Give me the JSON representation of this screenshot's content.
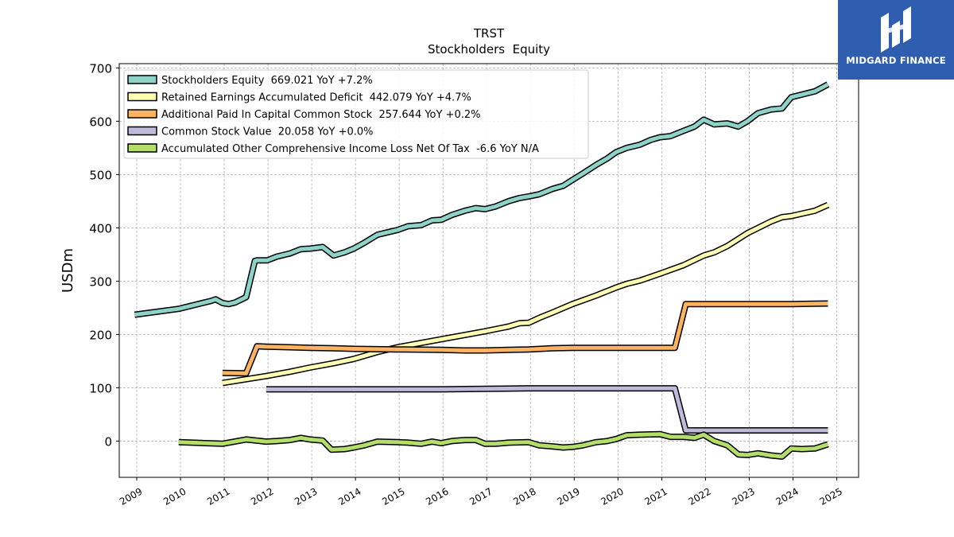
{
  "brand": {
    "name": "MIDGARD FINANCE",
    "bg_color": "#2f5db0"
  },
  "chart_data": {
    "type": "line",
    "title": "TRST",
    "subtitle": "Stockholders  Equity",
    "ylabel": "USDm",
    "xlabel": "",
    "xlim": [
      2008.6,
      2025.5
    ],
    "ylim": [
      -68,
      708
    ],
    "yticks": [
      0,
      100,
      200,
      300,
      400,
      500,
      600,
      700
    ],
    "xticks": [
      "2009",
      "2010",
      "2011",
      "2012",
      "2013",
      "2014",
      "2015",
      "2016",
      "2017",
      "2018",
      "2019",
      "2020",
      "2021",
      "2022",
      "2023",
      "2024",
      "2025"
    ],
    "grid": true,
    "legend_position": "top-left",
    "series": [
      {
        "name": "Stockholders Equity  669.021 YoY +7.2%",
        "color": "#8dd3c7",
        "points": [
          [
            2008.95,
            237
          ],
          [
            2009.96,
            248
          ],
          [
            2010.7,
            263
          ],
          [
            2010.8,
            266
          ],
          [
            2010.96,
            259
          ],
          [
            2011.1,
            257
          ],
          [
            2011.25,
            260
          ],
          [
            2011.5,
            270
          ],
          [
            2011.7,
            338
          ],
          [
            2011.75,
            339
          ],
          [
            2011.98,
            339
          ],
          [
            2012.2,
            346
          ],
          [
            2012.5,
            352
          ],
          [
            2012.75,
            360
          ],
          [
            2012.96,
            361
          ],
          [
            2013.25,
            364
          ],
          [
            2013.5,
            348
          ],
          [
            2013.75,
            354
          ],
          [
            2013.96,
            361
          ],
          [
            2014.2,
            372
          ],
          [
            2014.5,
            387
          ],
          [
            2014.75,
            392
          ],
          [
            2014.96,
            396
          ],
          [
            2015.2,
            403
          ],
          [
            2015.5,
            405
          ],
          [
            2015.75,
            414
          ],
          [
            2015.96,
            415
          ],
          [
            2016.2,
            424
          ],
          [
            2016.5,
            432
          ],
          [
            2016.75,
            437
          ],
          [
            2016.96,
            435
          ],
          [
            2017.2,
            440
          ],
          [
            2017.5,
            450
          ],
          [
            2017.75,
            456
          ],
          [
            2017.96,
            459
          ],
          [
            2018.2,
            463
          ],
          [
            2018.5,
            473
          ],
          [
            2018.75,
            479
          ],
          [
            2018.96,
            490
          ],
          [
            2019.2,
            502
          ],
          [
            2019.5,
            518
          ],
          [
            2019.75,
            530
          ],
          [
            2019.96,
            542
          ],
          [
            2020.2,
            550
          ],
          [
            2020.5,
            556
          ],
          [
            2020.75,
            565
          ],
          [
            2020.96,
            570
          ],
          [
            2021.2,
            572
          ],
          [
            2021.5,
            582
          ],
          [
            2021.75,
            590
          ],
          [
            2021.96,
            603
          ],
          [
            2022.2,
            594
          ],
          [
            2022.5,
            596
          ],
          [
            2022.75,
            590
          ],
          [
            2022.96,
            600
          ],
          [
            2023.2,
            615
          ],
          [
            2023.5,
            622
          ],
          [
            2023.75,
            624
          ],
          [
            2023.96,
            645
          ],
          [
            2024.2,
            650
          ],
          [
            2024.5,
            656
          ],
          [
            2024.8,
            669
          ]
        ]
      },
      {
        "name": "Retained Earnings Accumulated Deficit  442.079 YoY +4.7%",
        "color": "#ffffb3",
        "points": [
          [
            2010.96,
            109
          ],
          [
            2011.5,
            116
          ],
          [
            2011.96,
            122
          ],
          [
            2012.5,
            130
          ],
          [
            2012.96,
            138
          ],
          [
            2013.5,
            146
          ],
          [
            2013.96,
            154
          ],
          [
            2014.5,
            167
          ],
          [
            2014.96,
            176
          ],
          [
            2015.5,
            184
          ],
          [
            2015.96,
            191
          ],
          [
            2016.5,
            199
          ],
          [
            2016.96,
            206
          ],
          [
            2017.5,
            215
          ],
          [
            2017.75,
            221
          ],
          [
            2017.96,
            222
          ],
          [
            2018.2,
            231
          ],
          [
            2018.5,
            241
          ],
          [
            2018.96,
            257
          ],
          [
            2019.5,
            273
          ],
          [
            2019.96,
            288
          ],
          [
            2020.2,
            295
          ],
          [
            2020.5,
            301
          ],
          [
            2020.96,
            314
          ],
          [
            2021.5,
            330
          ],
          [
            2021.96,
            348
          ],
          [
            2022.2,
            354
          ],
          [
            2022.5,
            366
          ],
          [
            2022.96,
            390
          ],
          [
            2023.5,
            412
          ],
          [
            2023.75,
            420
          ],
          [
            2023.96,
            422
          ],
          [
            2024.5,
            432
          ],
          [
            2024.8,
            443
          ]
        ]
      },
      {
        "name": "Additional Paid In Capital Common Stock  257.644 YoY +0.2%",
        "color": "#fdb462",
        "points": [
          [
            2010.96,
            128
          ],
          [
            2011.5,
            127
          ],
          [
            2011.75,
            178
          ],
          [
            2011.96,
            177
          ],
          [
            2012.5,
            176
          ],
          [
            2012.96,
            175
          ],
          [
            2013.5,
            174
          ],
          [
            2013.96,
            173
          ],
          [
            2014.96,
            172
          ],
          [
            2015.96,
            171
          ],
          [
            2016.5,
            170
          ],
          [
            2016.96,
            170
          ],
          [
            2017.5,
            171
          ],
          [
            2017.96,
            172
          ],
          [
            2018.5,
            174
          ],
          [
            2018.96,
            175
          ],
          [
            2019.96,
            175
          ],
          [
            2020.96,
            175
          ],
          [
            2021.3,
            175
          ],
          [
            2021.55,
            257
          ],
          [
            2021.96,
            257
          ],
          [
            2022.96,
            257
          ],
          [
            2023.96,
            257
          ],
          [
            2024.8,
            258
          ]
        ]
      },
      {
        "name": "Common Stock Value  20.058 YoY +0.0%",
        "color": "#bebada",
        "points": [
          [
            2011.96,
            97
          ],
          [
            2012.96,
            97
          ],
          [
            2013.96,
            97
          ],
          [
            2014.96,
            97
          ],
          [
            2015.96,
            97
          ],
          [
            2016.96,
            98
          ],
          [
            2017.96,
            99
          ],
          [
            2018.96,
            99
          ],
          [
            2019.96,
            99
          ],
          [
            2020.96,
            99
          ],
          [
            2021.3,
            99
          ],
          [
            2021.55,
            20
          ],
          [
            2021.96,
            20
          ],
          [
            2022.96,
            20
          ],
          [
            2023.96,
            20
          ],
          [
            2024.8,
            20
          ]
        ]
      },
      {
        "name": "Accumulated Other Comprehensive Income Loss Net Of Tax  -6.6 YoY N/A",
        "color": "#b3de69",
        "points": [
          [
            2009.96,
            -2
          ],
          [
            2010.96,
            -5
          ],
          [
            2011.5,
            3
          ],
          [
            2011.96,
            -1
          ],
          [
            2012.2,
            0
          ],
          [
            2012.5,
            2
          ],
          [
            2012.75,
            6
          ],
          [
            2012.96,
            3
          ],
          [
            2013.25,
            1
          ],
          [
            2013.45,
            -16
          ],
          [
            2013.75,
            -15
          ],
          [
            2013.96,
            -12
          ],
          [
            2014.2,
            -8
          ],
          [
            2014.5,
            -1
          ],
          [
            2014.96,
            -2
          ],
          [
            2015.2,
            -3
          ],
          [
            2015.5,
            -5
          ],
          [
            2015.75,
            -1
          ],
          [
            2015.96,
            -4
          ],
          [
            2016.2,
            0
          ],
          [
            2016.5,
            2
          ],
          [
            2016.75,
            2
          ],
          [
            2016.96,
            -5
          ],
          [
            2017.2,
            -5
          ],
          [
            2017.5,
            -3
          ],
          [
            2017.96,
            -2
          ],
          [
            2018.2,
            -8
          ],
          [
            2018.5,
            -10
          ],
          [
            2018.75,
            -12
          ],
          [
            2018.96,
            -11
          ],
          [
            2019.2,
            -8
          ],
          [
            2019.5,
            -2
          ],
          [
            2019.75,
            0
          ],
          [
            2019.96,
            4
          ],
          [
            2020.2,
            11
          ],
          [
            2020.5,
            12
          ],
          [
            2020.96,
            13
          ],
          [
            2021.2,
            8
          ],
          [
            2021.5,
            8
          ],
          [
            2021.75,
            6
          ],
          [
            2021.96,
            12
          ],
          [
            2022.2,
            0
          ],
          [
            2022.5,
            -8
          ],
          [
            2022.75,
            -25
          ],
          [
            2022.96,
            -26
          ],
          [
            2023.2,
            -23
          ],
          [
            2023.5,
            -27
          ],
          [
            2023.75,
            -29
          ],
          [
            2023.96,
            -14
          ],
          [
            2024.2,
            -15
          ],
          [
            2024.5,
            -14
          ],
          [
            2024.8,
            -6
          ]
        ]
      }
    ]
  }
}
